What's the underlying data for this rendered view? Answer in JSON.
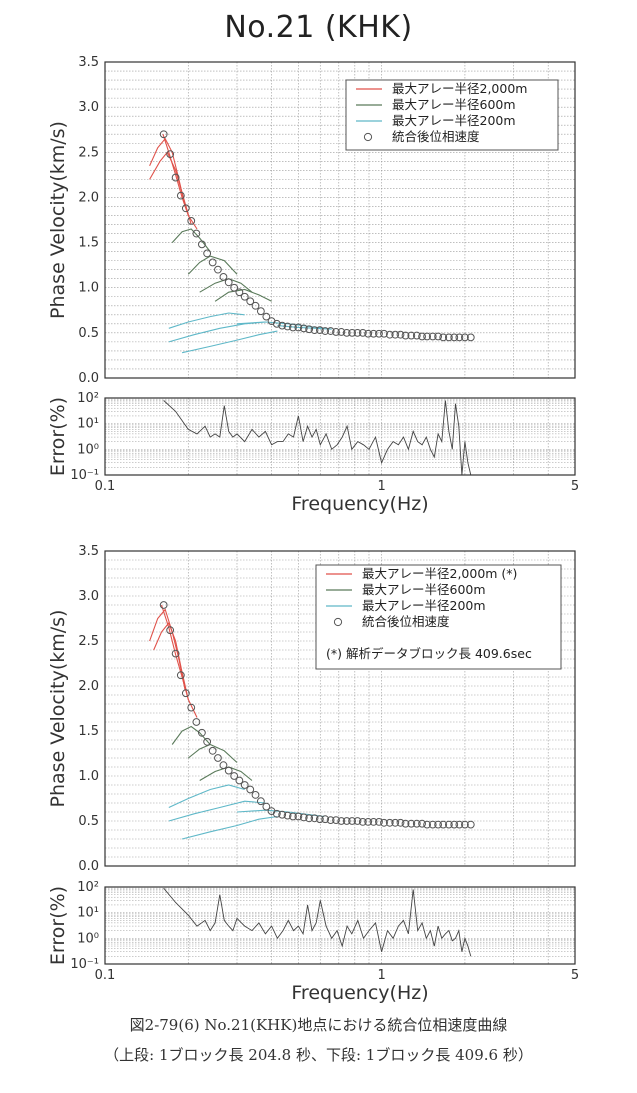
{
  "title": "No.21 (KHK)",
  "caption": {
    "line1": "図2-79(6) No.21(KHK)地点における統合位相速度曲線",
    "line2": "（上段: 1ブロック長 204.8 秒、下段: 1ブロック長 409.6 秒）"
  },
  "colors": {
    "array2000": "#e0524a",
    "array600": "#5a7a5a",
    "array200": "#5fb8c8",
    "combined": "#555555",
    "error": "#444444",
    "grid": "#999999"
  },
  "chart_data": [
    {
      "type": "line",
      "panel": "upper",
      "xscale": "log",
      "xlabel": "Frequency(Hz)",
      "ylabel": "Phase Velocity(km/s)",
      "xlim": [
        0.1,
        5
      ],
      "ylim": [
        0,
        3.5
      ],
      "xticks": [
        "0.1",
        "1",
        "5"
      ],
      "yticks": [
        "0.0",
        "0.5",
        "1.0",
        "1.5",
        "2.0",
        "2.5",
        "3.0",
        "3.5"
      ],
      "grid": true,
      "legend_position": "top-right",
      "legend": [
        "最大アレー半径2,000m",
        "最大アレー半径600m",
        "最大アレー半径200m",
        "統合後位相速度"
      ],
      "series": [
        {
          "name": "最大アレー半径2,000m",
          "style": "line",
          "color": "array2000",
          "segments": [
            {
              "x": [
                0.145,
                0.155,
                0.165,
                0.175,
                0.185,
                0.195
              ],
              "y": [
                2.35,
                2.55,
                2.65,
                2.5,
                2.2,
                1.9
              ]
            },
            {
              "x": [
                0.145,
                0.158,
                0.168,
                0.18,
                0.192,
                0.205
              ],
              "y": [
                2.2,
                2.4,
                2.5,
                2.3,
                2.0,
                1.7
              ]
            },
            {
              "x": [
                0.162,
                0.17,
                0.18,
                0.19,
                0.2,
                0.215
              ],
              "y": [
                2.7,
                2.5,
                2.25,
                2.0,
                1.8,
                1.65
              ]
            }
          ]
        },
        {
          "name": "最大アレー半径600m",
          "style": "line",
          "color": "array600",
          "segments": [
            {
              "x": [
                0.175,
                0.19,
                0.205,
                0.22,
                0.24
              ],
              "y": [
                1.5,
                1.62,
                1.65,
                1.55,
                1.4
              ]
            },
            {
              "x": [
                0.2,
                0.22,
                0.24,
                0.27,
                0.3
              ],
              "y": [
                1.15,
                1.28,
                1.35,
                1.3,
                1.15
              ]
            },
            {
              "x": [
                0.22,
                0.25,
                0.28,
                0.31,
                0.34
              ],
              "y": [
                0.95,
                1.05,
                1.1,
                1.05,
                0.95
              ]
            },
            {
              "x": [
                0.25,
                0.28,
                0.32,
                0.36,
                0.4
              ],
              "y": [
                0.85,
                0.95,
                0.98,
                0.92,
                0.85
              ]
            }
          ]
        },
        {
          "name": "最大アレー半径200m",
          "style": "line",
          "color": "array200",
          "segments": [
            {
              "x": [
                0.17,
                0.2,
                0.24,
                0.28,
                0.32
              ],
              "y": [
                0.55,
                0.62,
                0.68,
                0.72,
                0.7
              ]
            },
            {
              "x": [
                0.17,
                0.21,
                0.26,
                0.32,
                0.38
              ],
              "y": [
                0.4,
                0.48,
                0.55,
                0.6,
                0.62
              ]
            },
            {
              "x": [
                0.19,
                0.24,
                0.3,
                0.36,
                0.42
              ],
              "y": [
                0.28,
                0.35,
                0.42,
                0.48,
                0.52
              ]
            },
            {
              "x": [
                0.3,
                0.38,
                0.46,
                0.55,
                0.62
              ],
              "y": [
                0.6,
                0.62,
                0.6,
                0.57,
                0.55
              ]
            },
            {
              "x": [
                0.42,
                0.5,
                0.58,
                0.66
              ],
              "y": [
                0.58,
                0.56,
                0.55,
                0.54
              ]
            }
          ]
        },
        {
          "name": "統合後位相速度",
          "style": "circle",
          "color": "combined",
          "x": [
            0.163,
            0.172,
            0.18,
            0.188,
            0.196,
            0.205,
            0.214,
            0.224,
            0.234,
            0.245,
            0.256,
            0.268,
            0.28,
            0.293,
            0.306,
            0.32,
            0.335,
            0.35,
            0.366,
            0.383,
            0.4,
            0.418,
            0.437,
            0.457,
            0.478,
            0.5,
            0.523,
            0.547,
            0.572,
            0.598,
            0.625,
            0.654,
            0.684,
            0.715,
            0.748,
            0.782,
            0.818,
            0.855,
            0.894,
            0.935,
            0.978,
            1.02,
            1.07,
            1.12,
            1.17,
            1.22,
            1.28,
            1.34,
            1.4,
            1.46,
            1.53,
            1.6,
            1.67,
            1.75,
            1.83,
            1.91,
            2.0,
            2.1
          ],
          "y": [
            2.7,
            2.48,
            2.22,
            2.02,
            1.88,
            1.74,
            1.6,
            1.48,
            1.38,
            1.28,
            1.2,
            1.12,
            1.06,
            1.0,
            0.95,
            0.9,
            0.85,
            0.8,
            0.74,
            0.68,
            0.63,
            0.6,
            0.58,
            0.57,
            0.56,
            0.56,
            0.55,
            0.54,
            0.53,
            0.53,
            0.52,
            0.52,
            0.51,
            0.51,
            0.5,
            0.5,
            0.5,
            0.5,
            0.49,
            0.49,
            0.49,
            0.49,
            0.48,
            0.48,
            0.48,
            0.47,
            0.47,
            0.47,
            0.46,
            0.46,
            0.46,
            0.46,
            0.45,
            0.45,
            0.45,
            0.45,
            0.45,
            0.45
          ]
        }
      ]
    },
    {
      "type": "line",
      "panel": "upper-error",
      "xscale": "log",
      "yscale": "log",
      "xlabel": "Frequency(Hz)",
      "ylabel": "Error(%)",
      "xlim": [
        0.1,
        5
      ],
      "ylim": [
        0.1,
        100
      ],
      "xticks": [
        "0.1",
        "1",
        "5"
      ],
      "yticks": [
        "10⁻¹",
        "10⁰",
        "10¹",
        "10²"
      ],
      "grid": true,
      "series": [
        {
          "x": [
            0.163,
            0.18,
            0.2,
            0.215,
            0.23,
            0.24,
            0.25,
            0.26,
            0.27,
            0.28,
            0.29,
            0.3,
            0.32,
            0.34,
            0.36,
            0.38,
            0.4,
            0.42,
            0.44,
            0.46,
            0.48,
            0.5,
            0.52,
            0.54,
            0.56,
            0.58,
            0.6,
            0.63,
            0.66,
            0.69,
            0.72,
            0.75,
            0.78,
            0.82,
            0.86,
            0.9,
            0.95,
            1.0,
            1.05,
            1.1,
            1.15,
            1.2,
            1.25,
            1.3,
            1.35,
            1.4,
            1.45,
            1.5,
            1.55,
            1.6,
            1.65,
            1.7,
            1.75,
            1.8,
            1.85,
            1.9,
            1.95,
            2.0,
            2.05,
            2.1
          ],
          "y": [
            80,
            30,
            6,
            4,
            8,
            3,
            4,
            3,
            50,
            5,
            3,
            4,
            2,
            6,
            3,
            5,
            1.5,
            2,
            2,
            4,
            3,
            20,
            2,
            8,
            3,
            6,
            1.5,
            4,
            1,
            1.5,
            3,
            8,
            1,
            2,
            1.5,
            1,
            3,
            0.3,
            1,
            2,
            1.5,
            3,
            1,
            5,
            2,
            1.5,
            3,
            1,
            0.5,
            4,
            2,
            80,
            5,
            1,
            60,
            8,
            0.1,
            2,
            0.3,
            0.1
          ]
        }
      ]
    },
    {
      "type": "line",
      "panel": "lower",
      "xscale": "log",
      "xlabel": "Frequency(Hz)",
      "ylabel": "Phase Velocity(km/s)",
      "xlim": [
        0.1,
        5
      ],
      "ylim": [
        0,
        3.5
      ],
      "xticks": [
        "0.1",
        "1",
        "5"
      ],
      "yticks": [
        "0.0",
        "0.5",
        "1.0",
        "1.5",
        "2.0",
        "2.5",
        "3.0",
        "3.5"
      ],
      "grid": true,
      "legend_position": "top-right",
      "legend": [
        "最大アレー半径2,000m (*)",
        "最大アレー半径600m",
        "最大アレー半径200m",
        "統合後位相速度"
      ],
      "note": "(*) 解析データブロック長 409.6sec",
      "series": [
        {
          "name": "最大アレー半径2,000m (*)",
          "style": "line",
          "color": "array2000",
          "segments": [
            {
              "x": [
                0.145,
                0.155,
                0.165,
                0.175,
                0.185,
                0.195
              ],
              "y": [
                2.5,
                2.75,
                2.85,
                2.6,
                2.3,
                1.95
              ]
            },
            {
              "x": [
                0.15,
                0.16,
                0.17,
                0.18,
                0.19,
                0.2
              ],
              "y": [
                2.4,
                2.6,
                2.7,
                2.5,
                2.15,
                1.85
              ]
            },
            {
              "x": [
                0.16,
                0.17,
                0.18,
                0.19,
                0.2,
                0.215
              ],
              "y": [
                2.9,
                2.65,
                2.35,
                2.1,
                1.85,
                1.65
              ]
            }
          ]
        },
        {
          "name": "最大アレー半径600m",
          "style": "line",
          "color": "array600",
          "segments": [
            {
              "x": [
                0.175,
                0.19,
                0.205,
                0.22,
                0.24
              ],
              "y": [
                1.35,
                1.5,
                1.55,
                1.48,
                1.35
              ]
            },
            {
              "x": [
                0.2,
                0.22,
                0.24,
                0.27,
                0.3
              ],
              "y": [
                1.2,
                1.3,
                1.35,
                1.28,
                1.15
              ]
            },
            {
              "x": [
                0.22,
                0.25,
                0.28,
                0.31,
                0.34
              ],
              "y": [
                0.95,
                1.05,
                1.1,
                1.05,
                0.95
              ]
            }
          ]
        },
        {
          "name": "最大アレー半径200m",
          "style": "line",
          "color": "array200",
          "segments": [
            {
              "x": [
                0.17,
                0.2,
                0.24,
                0.28,
                0.32
              ],
              "y": [
                0.65,
                0.75,
                0.85,
                0.9,
                0.85
              ]
            },
            {
              "x": [
                0.17,
                0.21,
                0.26,
                0.32,
                0.38
              ],
              "y": [
                0.5,
                0.58,
                0.65,
                0.72,
                0.7
              ]
            },
            {
              "x": [
                0.19,
                0.24,
                0.3,
                0.36,
                0.42
              ],
              "y": [
                0.3,
                0.38,
                0.45,
                0.52,
                0.55
              ]
            },
            {
              "x": [
                0.3,
                0.38,
                0.46,
                0.55,
                0.62
              ],
              "y": [
                0.6,
                0.62,
                0.6,
                0.57,
                0.55
              ]
            }
          ]
        },
        {
          "name": "統合後位相速度",
          "style": "circle",
          "color": "combined",
          "x": [
            0.163,
            0.172,
            0.18,
            0.188,
            0.196,
            0.205,
            0.214,
            0.224,
            0.234,
            0.245,
            0.256,
            0.268,
            0.28,
            0.293,
            0.306,
            0.32,
            0.335,
            0.35,
            0.366,
            0.383,
            0.4,
            0.418,
            0.437,
            0.457,
            0.478,
            0.5,
            0.523,
            0.547,
            0.572,
            0.598,
            0.625,
            0.654,
            0.684,
            0.715,
            0.748,
            0.782,
            0.818,
            0.855,
            0.894,
            0.935,
            0.978,
            1.02,
            1.07,
            1.12,
            1.17,
            1.22,
            1.28,
            1.34,
            1.4,
            1.46,
            1.53,
            1.6,
            1.67,
            1.75,
            1.83,
            1.91,
            2.0,
            2.1
          ],
          "y": [
            2.9,
            2.62,
            2.36,
            2.12,
            1.92,
            1.76,
            1.6,
            1.48,
            1.38,
            1.28,
            1.2,
            1.12,
            1.06,
            1.0,
            0.95,
            0.9,
            0.85,
            0.79,
            0.72,
            0.66,
            0.61,
            0.58,
            0.57,
            0.56,
            0.55,
            0.55,
            0.54,
            0.53,
            0.53,
            0.52,
            0.52,
            0.51,
            0.51,
            0.5,
            0.5,
            0.5,
            0.5,
            0.49,
            0.49,
            0.49,
            0.49,
            0.48,
            0.48,
            0.48,
            0.48,
            0.47,
            0.47,
            0.47,
            0.47,
            0.46,
            0.46,
            0.46,
            0.46,
            0.46,
            0.46,
            0.46,
            0.46,
            0.46
          ]
        }
      ]
    },
    {
      "type": "line",
      "panel": "lower-error",
      "xscale": "log",
      "yscale": "log",
      "xlabel": "Frequency(Hz)",
      "ylabel": "Error(%)",
      "xlim": [
        0.1,
        5
      ],
      "ylim": [
        0.1,
        100
      ],
      "xticks": [
        "0.1",
        "1",
        "5"
      ],
      "yticks": [
        "10⁻¹",
        "10⁰",
        "10¹",
        "10²"
      ],
      "grid": true,
      "series": [
        {
          "x": [
            0.163,
            0.18,
            0.2,
            0.215,
            0.23,
            0.24,
            0.25,
            0.26,
            0.27,
            0.28,
            0.29,
            0.3,
            0.32,
            0.34,
            0.36,
            0.38,
            0.4,
            0.42,
            0.44,
            0.46,
            0.48,
            0.5,
            0.52,
            0.54,
            0.56,
            0.58,
            0.6,
            0.63,
            0.66,
            0.69,
            0.72,
            0.75,
            0.78,
            0.82,
            0.86,
            0.9,
            0.95,
            1.0,
            1.05,
            1.1,
            1.15,
            1.2,
            1.25,
            1.3,
            1.35,
            1.4,
            1.45,
            1.5,
            1.55,
            1.6,
            1.65,
            1.7,
            1.75,
            1.8,
            1.85,
            1.9,
            1.95,
            2.0,
            2.05,
            2.1
          ],
          "y": [
            90,
            25,
            8,
            3,
            5,
            2,
            4,
            50,
            5,
            3,
            2,
            6,
            3,
            2,
            4,
            1.5,
            3,
            1,
            2,
            5,
            2,
            3,
            1.5,
            20,
            2,
            4,
            30,
            3,
            1,
            2,
            0.5,
            3,
            1.5,
            5,
            1,
            2,
            4,
            0.3,
            2,
            1,
            3,
            5,
            1.5,
            80,
            2,
            4,
            1,
            2,
            0.5,
            3,
            1,
            1.5,
            2,
            0.8,
            1,
            2,
            0.3,
            1,
            0.5,
            0.2
          ]
        }
      ]
    }
  ]
}
